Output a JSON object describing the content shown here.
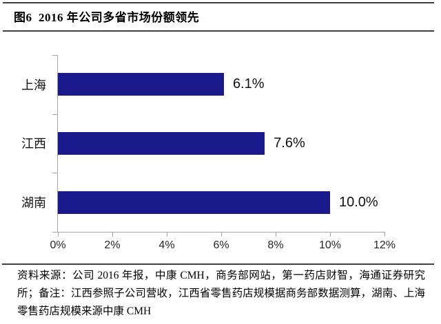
{
  "figure": {
    "title": "图6  2016 年公司多省市场份额领先"
  },
  "chart_data": {
    "type": "bar",
    "orientation": "horizontal",
    "title": "2016 年公司多省市场份额领先",
    "categories": [
      "上海",
      "江西",
      "湖南"
    ],
    "values": [
      6.1,
      7.6,
      10.0
    ],
    "value_labels": [
      "6.1%",
      "7.6%",
      "10.0%"
    ],
    "x_ticks": [
      "0%",
      "2%",
      "4%",
      "6%",
      "8%",
      "10%",
      "12%"
    ],
    "xlim": [
      0,
      12
    ],
    "xlabel": "",
    "ylabel": "",
    "grid": "off",
    "legend": "none",
    "bar_color": "#1a1a8c",
    "axis_color": "#a6a6a6"
  },
  "footer": {
    "source_text": "资料来源：公司 2016 年报，中康 CMH，商务部网站，第一药店财智，海通证券研究所；备注：江西参照子公司营收，江西省零售药店规模据商务部数据测算，湖南、上海零售药店规模来源中康 CMH"
  }
}
